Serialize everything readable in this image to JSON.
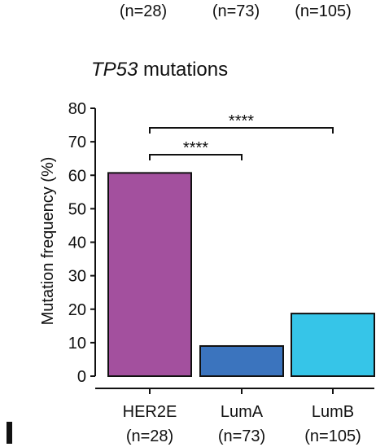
{
  "top_counts": [
    "(n=28)",
    "(n=73)",
    "(n=105)"
  ],
  "title": {
    "gene": "TP53",
    "suffix": " mutations"
  },
  "chart_data": {
    "type": "bar",
    "title": "TP53 mutations",
    "xlabel": "",
    "ylabel": "Mutation frequency (%)",
    "ylim": [
      0,
      80
    ],
    "yticks": [
      0,
      10,
      20,
      30,
      40,
      50,
      60,
      70,
      80
    ],
    "categories": [
      "HER2E",
      "LumA",
      "LumB"
    ],
    "category_counts": [
      "(n=28)",
      "(n=73)",
      "(n=105)"
    ],
    "values": [
      60.7,
      9.0,
      18.7
    ],
    "colors": [
      "#A3509E",
      "#3B74BE",
      "#36C5E8"
    ],
    "significance": [
      {
        "from": "HER2E",
        "to": "LumA",
        "label": "****"
      },
      {
        "from": "HER2E",
        "to": "LumB",
        "label": "****"
      }
    ],
    "grid": false,
    "legend": "none"
  }
}
